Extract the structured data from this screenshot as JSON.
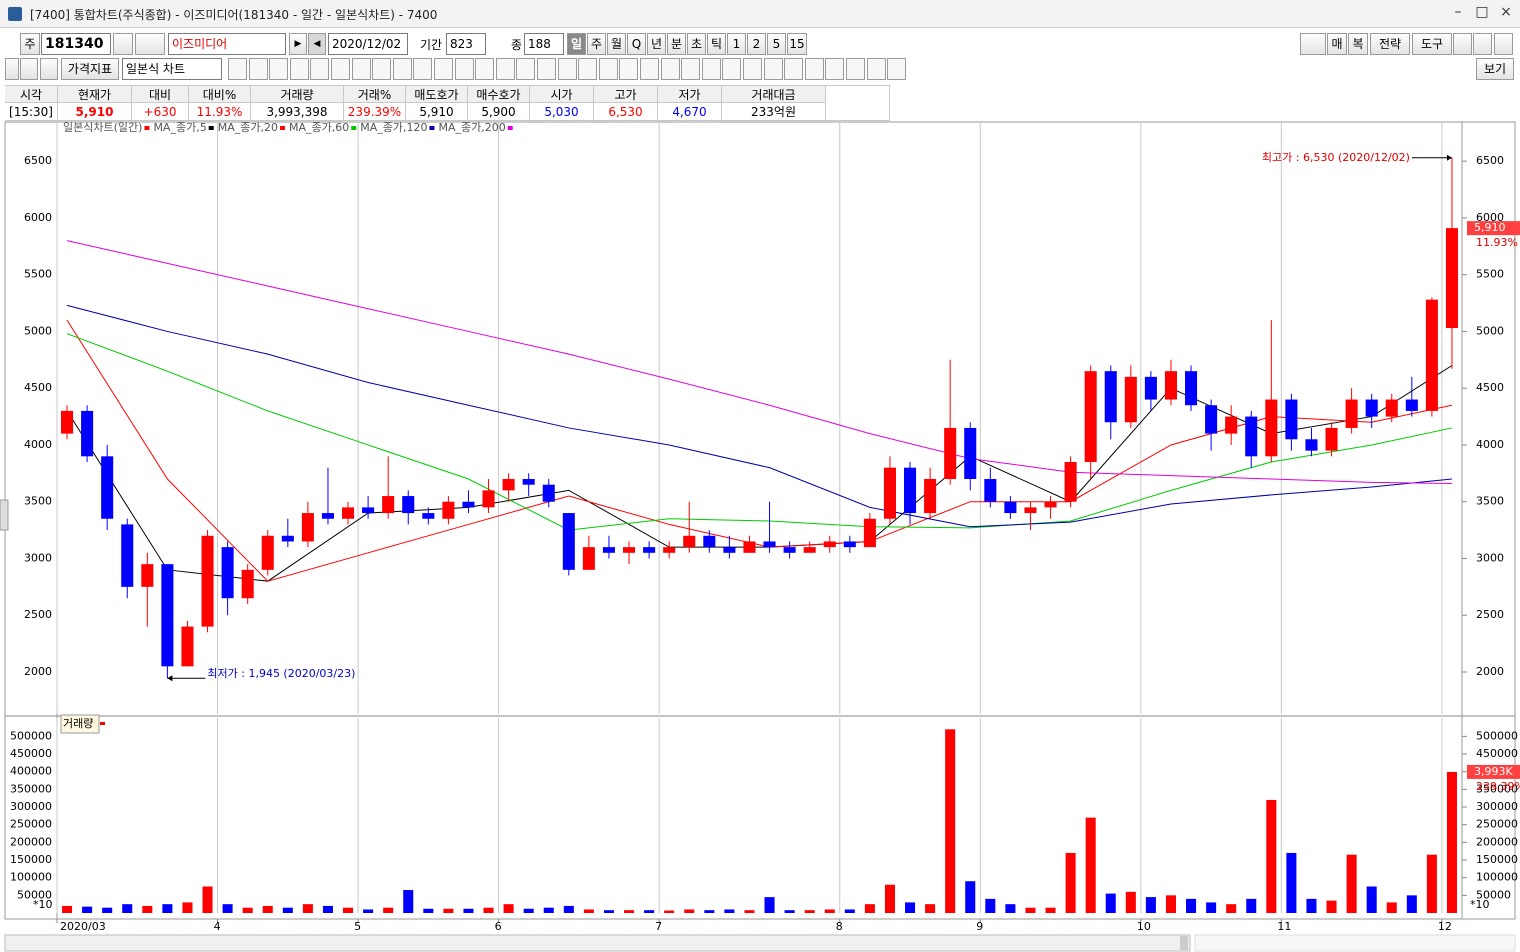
{
  "window": {
    "title": "[7400] 통합차트(주식종합) - 이즈미디어(181340 - 일간 - 일본식차트) - 7400"
  },
  "toolbar": {
    "market": "주",
    "code": "181340",
    "name": "이즈미디어",
    "date": "2020/12/02",
    "period_label": "기간",
    "period": "823",
    "count_label": "종",
    "count": "188",
    "periods": [
      "일",
      "주",
      "월",
      "Q",
      "년",
      "분",
      "초",
      "틱",
      "1",
      "2",
      "5",
      "15"
    ],
    "right_buttons": [
      "매",
      "복",
      "전략",
      "도구"
    ],
    "indicator": "가격지표",
    "chart_type": "일본식 차트",
    "view": "보기"
  },
  "quote": {
    "headers": [
      "시각",
      "현재가",
      "대비",
      "대비%",
      "거래량",
      "거래%",
      "매도호가",
      "매수호가",
      "시가",
      "고가",
      "저가",
      "거래대금"
    ],
    "values": [
      "[15:30]",
      "5,910",
      "+630",
      "11.93%",
      "3,993,398",
      "239.39%",
      "5,910",
      "5,900",
      "5,030",
      "6,530",
      "4,670",
      "233억원"
    ],
    "value_colors": [
      "#000000",
      "#ff0000",
      "#ff0000",
      "#ff0000",
      "#000000",
      "#ff0000",
      "#000000",
      "#000000",
      "#0000ff",
      "#ff0000",
      "#0000ff",
      "#000000"
    ]
  },
  "chart_data": [
    {
      "type": "candlestick",
      "title": "일본식차트(일간)",
      "up_color": "#ff0000",
      "down_color": "#0000ff",
      "grid": "x",
      "categories": [
        "2020/03",
        null,
        null,
        null,
        null,
        null,
        null,
        null,
        "4",
        null,
        null,
        null,
        null,
        null,
        null,
        "5",
        null,
        null,
        null,
        null,
        null,
        null,
        "6",
        null,
        null,
        null,
        null,
        null,
        null,
        null,
        "7",
        null,
        null,
        null,
        null,
        null,
        null,
        null,
        null,
        "8",
        null,
        null,
        null,
        null,
        null,
        null,
        "9",
        null,
        null,
        null,
        null,
        null,
        null,
        null,
        "10",
        null,
        null,
        null,
        null,
        null,
        null,
        "11",
        null,
        null,
        null,
        null,
        null,
        null,
        null,
        "12"
      ],
      "open": [
        4100,
        4300,
        3900,
        3300,
        2750,
        2950,
        2050,
        2400,
        3100,
        2650,
        2900,
        3200,
        3150,
        3400,
        3350,
        3450,
        3400,
        3550,
        3400,
        3350,
        3500,
        3450,
        3600,
        3700,
        3650,
        3400,
        2900,
        3100,
        3050,
        3100,
        3050,
        3100,
        3200,
        3100,
        3050,
        3150,
        3100,
        3050,
        3100,
        3150,
        3100,
        3350,
        3800,
        3400,
        3700,
        4150,
        3700,
        3500,
        3400,
        3450,
        3500,
        3850,
        4650,
        4200,
        4600,
        4400,
        4650,
        4350,
        4100,
        4250,
        3900,
        4400,
        4050,
        3950,
        4150,
        4400,
        4250,
        4400,
        4300,
        5030
      ],
      "high": [
        4350,
        4350,
        4000,
        3350,
        3050,
        2950,
        2450,
        3250,
        3150,
        2950,
        3250,
        3350,
        3500,
        3800,
        3500,
        3550,
        3900,
        3600,
        3450,
        3550,
        3600,
        3700,
        3750,
        3750,
        3700,
        3400,
        3200,
        3200,
        3150,
        3150,
        3150,
        3500,
        3250,
        3200,
        3200,
        3500,
        3150,
        3150,
        3200,
        3200,
        3400,
        3900,
        3850,
        3800,
        4750,
        4200,
        3800,
        3550,
        3500,
        3550,
        3900,
        4700,
        4700,
        4700,
        4650,
        4750,
        4700,
        4400,
        4350,
        4300,
        5100,
        4450,
        4150,
        4200,
        4500,
        4450,
        4450,
        4600,
        5300,
        6530
      ],
      "low": [
        4050,
        3850,
        3250,
        2650,
        2400,
        1945,
        2050,
        2350,
        2500,
        2600,
        2850,
        3100,
        3100,
        3300,
        3300,
        3350,
        3350,
        3300,
        3300,
        3300,
        3400,
        3400,
        3500,
        3550,
        3450,
        2850,
        2900,
        3000,
        2950,
        3000,
        3000,
        3050,
        3050,
        3000,
        3050,
        3050,
        3000,
        3050,
        3050,
        3050,
        3100,
        3300,
        3300,
        3350,
        3650,
        3600,
        3450,
        3350,
        3250,
        3350,
        3450,
        3700,
        4050,
        4150,
        4300,
        4350,
        4300,
        3950,
        4000,
        3800,
        3850,
        3950,
        3900,
        3900,
        4100,
        4150,
        4200,
        4250,
        4250,
        4670
      ],
      "close": [
        4300,
        3900,
        3350,
        2750,
        2950,
        2050,
        2400,
        3200,
        2650,
        2900,
        3200,
        3150,
        3400,
        3350,
        3450,
        3400,
        3550,
        3400,
        3350,
        3500,
        3450,
        3600,
        3700,
        3650,
        3500,
        2900,
        3100,
        3050,
        3100,
        3050,
        3100,
        3200,
        3100,
        3050,
        3150,
        3100,
        3050,
        3100,
        3150,
        3100,
        3350,
        3800,
        3400,
        3700,
        4150,
        3700,
        3500,
        3400,
        3450,
        3500,
        3850,
        4650,
        4200,
        4600,
        4400,
        4650,
        4350,
        4100,
        4250,
        3900,
        4400,
        4050,
        3950,
        4150,
        4400,
        4250,
        4400,
        4300,
        5280,
        5910
      ],
      "series": [
        {
          "name": "MA_종가,5",
          "color": "#000000",
          "x": [
            0,
            5,
            10,
            15,
            20,
            25,
            30,
            35,
            40,
            45,
            50,
            55,
            60,
            65,
            69
          ],
          "values": [
            4300,
            2900,
            2800,
            3400,
            3450,
            3600,
            3100,
            3100,
            3150,
            3900,
            3500,
            4500,
            4100,
            4250,
            4700
          ]
        },
        {
          "name": "MA_종가,20",
          "color": "#ff0000",
          "x": [
            0,
            5,
            10,
            15,
            20,
            25,
            30,
            35,
            40,
            45,
            50,
            55,
            60,
            65,
            69
          ],
          "values": [
            5100,
            3700,
            2800,
            3050,
            3300,
            3550,
            3300,
            3100,
            3150,
            3500,
            3500,
            4000,
            4250,
            4200,
            4350
          ]
        },
        {
          "name": "MA_종가,60",
          "color": "#00cc00",
          "x": [
            0,
            5,
            10,
            15,
            20,
            25,
            30,
            35,
            40,
            45,
            50,
            55,
            60,
            65,
            69
          ],
          "values": [
            4980,
            4650,
            4300,
            4000,
            3700,
            3250,
            3350,
            3330,
            3280,
            3270,
            3330,
            3600,
            3850,
            4000,
            4150
          ]
        },
        {
          "name": "MA_종가,120",
          "color": "#0000aa",
          "x": [
            0,
            5,
            10,
            15,
            20,
            25,
            30,
            35,
            40,
            45,
            50,
            55,
            60,
            65,
            69
          ],
          "values": [
            5230,
            5000,
            4800,
            4550,
            4350,
            4150,
            4000,
            3800,
            3450,
            3280,
            3320,
            3480,
            3560,
            3630,
            3700
          ]
        },
        {
          "name": "MA_종가,200",
          "color": "#e000e0",
          "x": [
            0,
            5,
            10,
            15,
            20,
            25,
            30,
            35,
            40,
            45,
            50,
            55,
            60,
            65,
            69
          ],
          "values": [
            5800,
            5600,
            5400,
            5200,
            5000,
            4800,
            4580,
            4350,
            4100,
            3880,
            3760,
            3730,
            3700,
            3670,
            3660
          ]
        }
      ],
      "ylim": [
        1630,
        6845
      ],
      "yticks": [
        2000,
        2500,
        3000,
        3500,
        4000,
        4500,
        5000,
        5500,
        6000,
        6500
      ],
      "annotations": [
        "최고가 : 6,530 (2020/12/02)",
        "최저가 : 1,945 (2020/03/23)"
      ],
      "last_labels": [
        "5,910",
        "11.93%"
      ]
    },
    {
      "type": "bar",
      "title": "거래량",
      "unit_label": "*10",
      "values": [
        20000,
        18000,
        15000,
        25000,
        20000,
        25000,
        30000,
        75000,
        25000,
        15000,
        20000,
        15000,
        25000,
        20000,
        15000,
        10000,
        15000,
        65000,
        12000,
        12000,
        12000,
        15000,
        25000,
        12000,
        15000,
        20000,
        10000,
        8000,
        8000,
        8000,
        7000,
        10000,
        8000,
        10000,
        8000,
        45000,
        8000,
        8000,
        10000,
        10000,
        25000,
        80000,
        30000,
        25000,
        520000,
        90000,
        40000,
        25000,
        15000,
        15000,
        170000,
        270000,
        55000,
        60000,
        45000,
        50000,
        40000,
        30000,
        25000,
        40000,
        320000,
        170000,
        40000,
        35000,
        165000,
        75000,
        30000,
        50000,
        165000,
        399340
      ],
      "ylim": [
        0,
        552000
      ],
      "yticks": [
        50000,
        100000,
        150000,
        200000,
        250000,
        300000,
        350000,
        400000,
        450000,
        500000
      ],
      "last_labels": [
        "3,993K",
        "239.39%"
      ]
    }
  ]
}
